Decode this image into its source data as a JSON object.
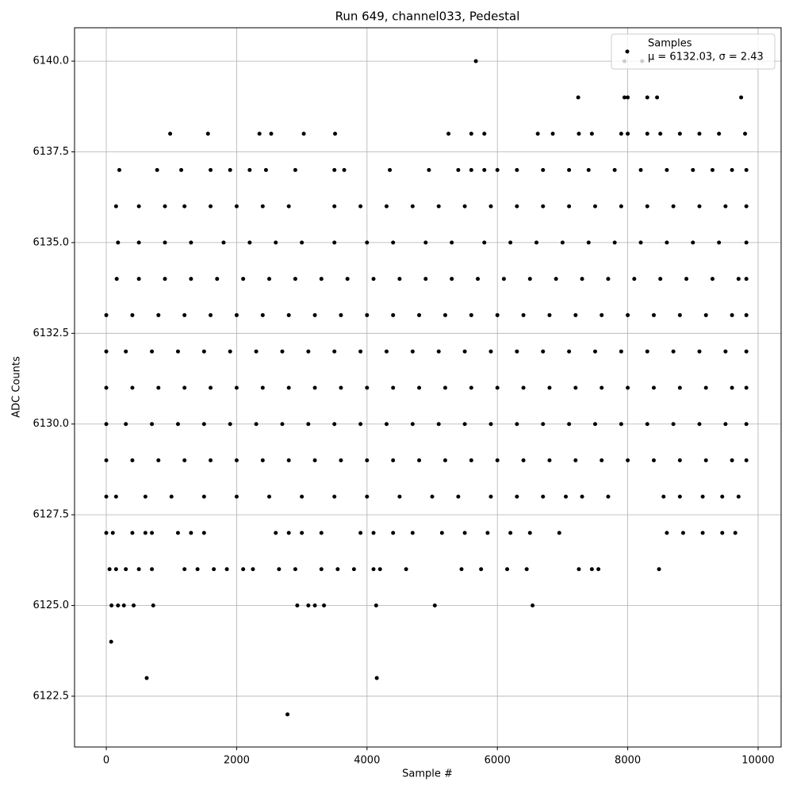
{
  "chart_data": {
    "type": "scatter",
    "title": "Run 649, channel033, Pedestal",
    "x_label": "Sample #",
    "y_label": "ADC Counts",
    "xlim": [
      -487,
      10353
    ],
    "ylim": [
      6121.1,
      6140.92
    ],
    "xticks": [
      0,
      2000,
      4000,
      6000,
      8000,
      10000
    ],
    "yticks": [
      {
        "value": 6122.5,
        "label": "6122.5"
      },
      {
        "value": 6125,
        "label": "6125.0"
      },
      {
        "value": 6127.5,
        "label": "6127.5"
      },
      {
        "value": 6130,
        "label": "6130.0"
      },
      {
        "value": 6132.5,
        "label": "6132.5"
      },
      {
        "value": 6135,
        "label": "6135.0"
      },
      {
        "value": 6137.5,
        "label": "6137.5"
      },
      {
        "value": 6140,
        "label": "6140.0"
      }
    ],
    "grid": true,
    "legend_position": "upper right",
    "series": [
      {
        "name": "Samples",
        "stats_label": "μ = 6132.03, σ = 2.43",
        "color": "#000000",
        "x": [
          0,
          400,
          800,
          1200,
          1600,
          2000,
          2400,
          2800,
          3200,
          3600,
          4000,
          4400,
          4800,
          5200,
          5600,
          6000,
          6400,
          6800,
          7200,
          7600,
          8000,
          8400,
          8800,
          9200,
          9600,
          9820,
          0,
          300,
          700,
          1100,
          1500,
          1900,
          2300,
          2700,
          3100,
          3500,
          3900,
          4300,
          4700,
          5100,
          5500,
          5900,
          6300,
          6700,
          7100,
          7500,
          7900,
          8300,
          8700,
          9100,
          9500,
          9820,
          0,
          400,
          800,
          1200,
          1600,
          2000,
          2400,
          2800,
          3200,
          3600,
          4000,
          4400,
          4800,
          5200,
          5600,
          6000,
          6400,
          6800,
          7200,
          7600,
          8000,
          8400,
          8800,
          9200,
          9600,
          9820,
          0,
          300,
          700,
          1100,
          1500,
          1900,
          2300,
          2700,
          3100,
          3500,
          3900,
          4300,
          4700,
          5100,
          5500,
          5900,
          6300,
          6700,
          7100,
          7500,
          7900,
          8300,
          8700,
          9100,
          9500,
          9820,
          0,
          400,
          800,
          1200,
          1600,
          2000,
          2400,
          2800,
          3200,
          3600,
          4000,
          4400,
          4800,
          5200,
          5600,
          6000,
          6400,
          6800,
          7200,
          7600,
          8000,
          8400,
          8800,
          9200,
          9600,
          9820,
          160,
          500,
          900,
          1300,
          1700,
          2100,
          2500,
          2900,
          3300,
          3700,
          4100,
          4500,
          4900,
          5300,
          5700,
          6100,
          6500,
          6900,
          7300,
          7700,
          8100,
          8500,
          8900,
          9300,
          9700,
          9820,
          0,
          150,
          600,
          1000,
          1500,
          2000,
          2500,
          3000,
          3500,
          4000,
          4500,
          5000,
          5400,
          5900,
          6300,
          6700,
          7050,
          7300,
          7700,
          8550,
          8800,
          9150,
          9450,
          9700,
          180,
          500,
          900,
          1300,
          1800,
          2200,
          2600,
          3000,
          3500,
          4000,
          4400,
          4900,
          5300,
          5800,
          6200,
          6600,
          7000,
          7400,
          7800,
          8200,
          8600,
          9000,
          9400,
          9820,
          150,
          500,
          900,
          1200,
          1600,
          2000,
          2400,
          2800,
          3500,
          3900,
          4300,
          4700,
          5100,
          5500,
          5900,
          6300,
          6700,
          7100,
          7500,
          7900,
          8300,
          8700,
          9100,
          9500,
          9820,
          0,
          100,
          400,
          600,
          700,
          1100,
          1300,
          1500,
          2600,
          2800,
          3000,
          3300,
          3900,
          4100,
          4400,
          4700,
          5150,
          5500,
          5850,
          6200,
          6500,
          6950,
          8600,
          8850,
          9150,
          9450,
          9650,
          200,
          780,
          1150,
          1600,
          1900,
          2200,
          2450,
          2900,
          3500,
          3650,
          4350,
          4950,
          5400,
          5600,
          5800,
          6000,
          6300,
          6700,
          7100,
          7400,
          7800,
          8200,
          8600,
          9000,
          9300,
          9600,
          9820,
          50,
          150,
          300,
          500,
          700,
          1200,
          1400,
          1650,
          1850,
          2100,
          2250,
          2650,
          2900,
          3300,
          3550,
          3800,
          4100,
          4200,
          4600,
          5450,
          5750,
          6150,
          6450,
          7250,
          7450,
          7550,
          8480,
          980,
          1560,
          2350,
          2530,
          3030,
          3510,
          5250,
          5600,
          5800,
          6620,
          6850,
          7250,
          7450,
          7900,
          8000,
          8300,
          8500,
          8800,
          9100,
          9400,
          9800,
          80,
          180,
          270,
          420,
          720,
          2930,
          3100,
          3200,
          3340,
          4140,
          5040,
          6540,
          75,
          620,
          4150,
          2780,
          7240,
          7950,
          8000,
          8300,
          8450,
          9740,
          5670,
          7950,
          8220
        ],
        "values": [
          6133,
          6133,
          6133,
          6133,
          6133,
          6133,
          6133,
          6133,
          6133,
          6133,
          6133,
          6133,
          6133,
          6133,
          6133,
          6133,
          6133,
          6133,
          6133,
          6133,
          6133,
          6133,
          6133,
          6133,
          6133,
          6133,
          6132,
          6132,
          6132,
          6132,
          6132,
          6132,
          6132,
          6132,
          6132,
          6132,
          6132,
          6132,
          6132,
          6132,
          6132,
          6132,
          6132,
          6132,
          6132,
          6132,
          6132,
          6132,
          6132,
          6132,
          6132,
          6132,
          6131,
          6131,
          6131,
          6131,
          6131,
          6131,
          6131,
          6131,
          6131,
          6131,
          6131,
          6131,
          6131,
          6131,
          6131,
          6131,
          6131,
          6131,
          6131,
          6131,
          6131,
          6131,
          6131,
          6131,
          6131,
          6131,
          6130,
          6130,
          6130,
          6130,
          6130,
          6130,
          6130,
          6130,
          6130,
          6130,
          6130,
          6130,
          6130,
          6130,
          6130,
          6130,
          6130,
          6130,
          6130,
          6130,
          6130,
          6130,
          6130,
          6130,
          6130,
          6130,
          6129,
          6129,
          6129,
          6129,
          6129,
          6129,
          6129,
          6129,
          6129,
          6129,
          6129,
          6129,
          6129,
          6129,
          6129,
          6129,
          6129,
          6129,
          6129,
          6129,
          6129,
          6129,
          6129,
          6129,
          6129,
          6129,
          6134,
          6134,
          6134,
          6134,
          6134,
          6134,
          6134,
          6134,
          6134,
          6134,
          6134,
          6134,
          6134,
          6134,
          6134,
          6134,
          6134,
          6134,
          6134,
          6134,
          6134,
          6134,
          6134,
          6134,
          6134,
          6134,
          6128,
          6128,
          6128,
          6128,
          6128,
          6128,
          6128,
          6128,
          6128,
          6128,
          6128,
          6128,
          6128,
          6128,
          6128,
          6128,
          6128,
          6128,
          6128,
          6128,
          6128,
          6128,
          6128,
          6128,
          6135,
          6135,
          6135,
          6135,
          6135,
          6135,
          6135,
          6135,
          6135,
          6135,
          6135,
          6135,
          6135,
          6135,
          6135,
          6135,
          6135,
          6135,
          6135,
          6135,
          6135,
          6135,
          6135,
          6135,
          6136,
          6136,
          6136,
          6136,
          6136,
          6136,
          6136,
          6136,
          6136,
          6136,
          6136,
          6136,
          6136,
          6136,
          6136,
          6136,
          6136,
          6136,
          6136,
          6136,
          6136,
          6136,
          6136,
          6136,
          6136,
          6127,
          6127,
          6127,
          6127,
          6127,
          6127,
          6127,
          6127,
          6127,
          6127,
          6127,
          6127,
          6127,
          6127,
          6127,
          6127,
          6127,
          6127,
          6127,
          6127,
          6127,
          6127,
          6127,
          6127,
          6127,
          6127,
          6127,
          6137,
          6137,
          6137,
          6137,
          6137,
          6137,
          6137,
          6137,
          6137,
          6137,
          6137,
          6137,
          6137,
          6137,
          6137,
          6137,
          6137,
          6137,
          6137,
          6137,
          6137,
          6137,
          6137,
          6137,
          6137,
          6137,
          6137,
          6126,
          6126,
          6126,
          6126,
          6126,
          6126,
          6126,
          6126,
          6126,
          6126,
          6126,
          6126,
          6126,
          6126,
          6126,
          6126,
          6126,
          6126,
          6126,
          6126,
          6126,
          6126,
          6126,
          6126,
          6126,
          6126,
          6126,
          6138,
          6138,
          6138,
          6138,
          6138,
          6138,
          6138,
          6138,
          6138,
          6138,
          6138,
          6138,
          6138,
          6138,
          6138,
          6138,
          6138,
          6138,
          6138,
          6138,
          6138,
          6125,
          6125,
          6125,
          6125,
          6125,
          6125,
          6125,
          6125,
          6125,
          6125,
          6125,
          6125,
          6124,
          6123,
          6123,
          6122,
          6139,
          6139,
          6139,
          6139,
          6139,
          6139,
          6140,
          6140,
          6140
        ]
      }
    ]
  }
}
